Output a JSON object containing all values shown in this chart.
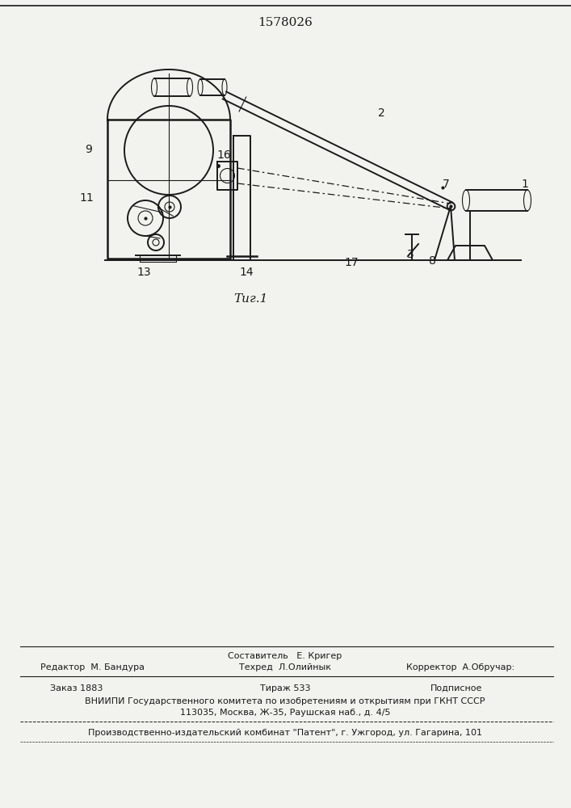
{
  "patent_number": "1578026",
  "fig_label": "Τиг.1",
  "bg_color": "#f2f2ee",
  "line_color": "#1a1a1a",
  "footer_sestavitel": "Составитель   Е. Кригер",
  "footer_redaktor": "Редактор  М. Бандура",
  "footer_tehred": "Техред  Л.Олийнык",
  "footer_korrektor": "Корректор  А.Обручар:",
  "footer_order": "Заказ 1883",
  "footer_tirazh": "Тираж 533",
  "footer_podp": "Подписное",
  "footer_vniip": "ВНИИПИ Государственного комитета по изобретениям и открытиям при ГКНТ СССР",
  "footer_addr": "113035, Москва, Ж-35, Раушская наб., д. 4/5",
  "footer_prod": "Производственно-издательский комбинат \"Патент\", г. Ужгород, ул. Гагарина, 101"
}
